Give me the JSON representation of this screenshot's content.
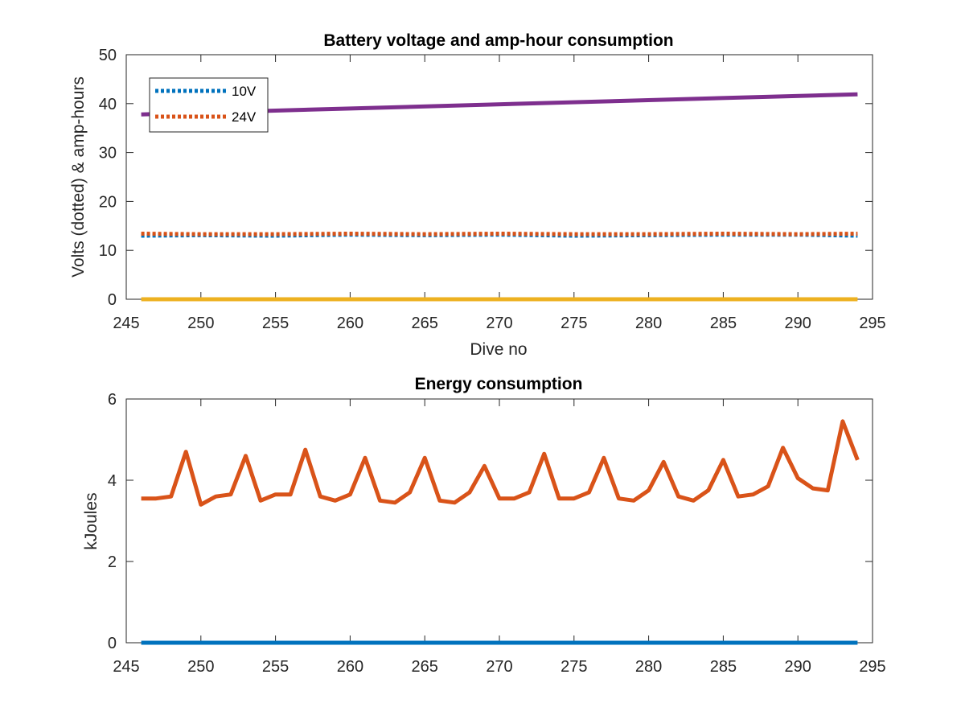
{
  "chart_data": [
    {
      "type": "line",
      "title": "Battery voltage and amp-hour consumption",
      "xlabel": "Dive no",
      "ylabel": "Volts (dotted) & amp-hours",
      "xlim": [
        245,
        295
      ],
      "ylim": [
        0,
        50
      ],
      "xticks": [
        245,
        250,
        255,
        260,
        265,
        270,
        275,
        280,
        285,
        290,
        295
      ],
      "yticks": [
        0,
        10,
        20,
        30,
        40,
        50
      ],
      "grid": false,
      "legend": "top-left",
      "series": [
        {
          "name": "10V",
          "style": "dotted",
          "color": "#0072BD",
          "x": [
            246,
            250,
            255,
            260,
            265,
            270,
            275,
            280,
            285,
            290,
            294
          ],
          "y": [
            13.0,
            13.1,
            13.0,
            13.2,
            13.1,
            13.2,
            13.0,
            13.1,
            13.2,
            13.2,
            13.0
          ]
        },
        {
          "name": "24V",
          "style": "dotted",
          "color": "#D95319",
          "x": [
            246,
            250,
            255,
            260,
            265,
            270,
            275,
            280,
            285,
            290,
            294
          ],
          "y": [
            13.4,
            13.3,
            13.3,
            13.4,
            13.3,
            13.4,
            13.3,
            13.3,
            13.4,
            13.3,
            13.4
          ]
        },
        {
          "style": "solid",
          "color": "#EDB120",
          "x": [
            246,
            294
          ],
          "y": [
            0,
            0
          ]
        },
        {
          "style": "solid",
          "color": "#7E2F8E",
          "x": [
            246,
            294
          ],
          "y": [
            37.8,
            41.9
          ]
        }
      ]
    },
    {
      "type": "line",
      "title": "Energy consumption",
      "xlabel": "",
      "ylabel": "kJoules",
      "xlim": [
        245,
        295
      ],
      "ylim": [
        0,
        6
      ],
      "xticks": [
        245,
        250,
        255,
        260,
        265,
        270,
        275,
        280,
        285,
        290,
        295
      ],
      "yticks": [
        0,
        2,
        4,
        6
      ],
      "grid": false,
      "series": [
        {
          "style": "solid",
          "color": "#0072BD",
          "x": [
            246,
            294
          ],
          "y": [
            0,
            0
          ]
        },
        {
          "style": "solid",
          "color": "#D95319",
          "x": [
            246,
            247,
            248,
            249,
            250,
            251,
            252,
            253,
            254,
            255,
            256,
            257,
            258,
            259,
            260,
            261,
            262,
            263,
            264,
            265,
            266,
            267,
            268,
            269,
            270,
            271,
            272,
            273,
            274,
            275,
            276,
            277,
            278,
            279,
            280,
            281,
            282,
            283,
            284,
            285,
            286,
            287,
            288,
            289,
            290,
            291,
            292,
            293,
            294
          ],
          "y": [
            3.55,
            3.55,
            3.6,
            4.7,
            3.4,
            3.6,
            3.65,
            4.6,
            3.5,
            3.65,
            3.65,
            4.75,
            3.6,
            3.5,
            3.65,
            4.55,
            3.5,
            3.45,
            3.7,
            4.55,
            3.5,
            3.45,
            3.7,
            4.35,
            3.55,
            3.55,
            3.7,
            4.65,
            3.55,
            3.55,
            3.7,
            4.55,
            3.55,
            3.5,
            3.75,
            4.45,
            3.6,
            3.5,
            3.75,
            4.5,
            3.6,
            3.65,
            3.85,
            4.8,
            4.05,
            3.8,
            3.75,
            5.45,
            4.5
          ]
        }
      ]
    }
  ]
}
